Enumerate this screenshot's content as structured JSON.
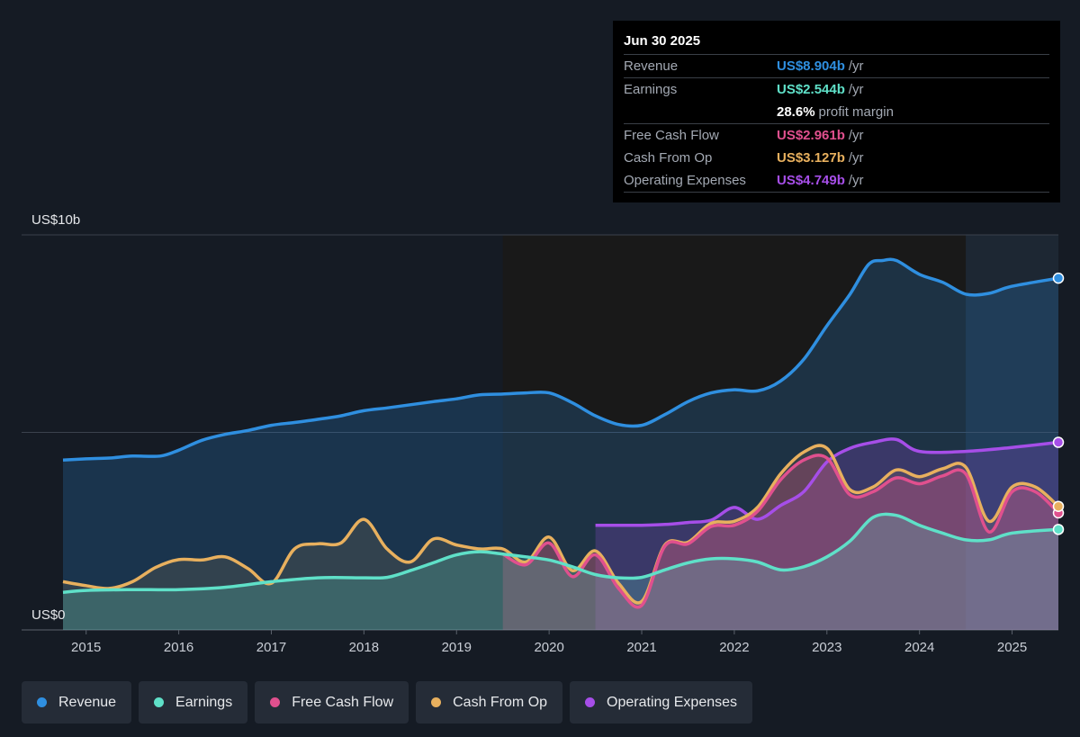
{
  "chart_data": {
    "type": "area",
    "y_top_label": "US$10b",
    "y_bottom_label": "US$0",
    "ylim": [
      0,
      10
    ],
    "xlim": [
      2014.55,
      2025.5
    ],
    "x_ticks": [
      "2015",
      "2016",
      "2017",
      "2018",
      "2019",
      "2020",
      "2021",
      "2022",
      "2023",
      "2024",
      "2025"
    ],
    "gridlines": [
      0,
      5,
      10
    ],
    "forecast_start": 2024.5,
    "series": [
      {
        "name": "Revenue",
        "color": "#2f8fe0",
        "points": [
          [
            2014.75,
            4.3
          ],
          [
            2015.0,
            4.33
          ],
          [
            2015.25,
            4.35
          ],
          [
            2015.5,
            4.4
          ],
          [
            2015.8,
            4.4
          ],
          [
            2016.0,
            4.55
          ],
          [
            2016.25,
            4.8
          ],
          [
            2016.5,
            4.95
          ],
          [
            2016.75,
            5.05
          ],
          [
            2017.0,
            5.18
          ],
          [
            2017.25,
            5.25
          ],
          [
            2017.5,
            5.33
          ],
          [
            2017.75,
            5.42
          ],
          [
            2018.0,
            5.55
          ],
          [
            2018.25,
            5.62
          ],
          [
            2018.5,
            5.7
          ],
          [
            2018.75,
            5.78
          ],
          [
            2019.0,
            5.85
          ],
          [
            2019.25,
            5.95
          ],
          [
            2019.5,
            5.97
          ],
          [
            2019.75,
            6.0
          ],
          [
            2020.0,
            6.0
          ],
          [
            2020.25,
            5.75
          ],
          [
            2020.5,
            5.42
          ],
          [
            2020.75,
            5.2
          ],
          [
            2021.0,
            5.18
          ],
          [
            2021.25,
            5.45
          ],
          [
            2021.5,
            5.78
          ],
          [
            2021.75,
            6.0
          ],
          [
            2022.0,
            6.08
          ],
          [
            2022.25,
            6.05
          ],
          [
            2022.5,
            6.3
          ],
          [
            2022.75,
            6.85
          ],
          [
            2023.0,
            7.7
          ],
          [
            2023.25,
            8.5
          ],
          [
            2023.45,
            9.25
          ],
          [
            2023.6,
            9.35
          ],
          [
            2023.75,
            9.35
          ],
          [
            2024.0,
            9.0
          ],
          [
            2024.25,
            8.8
          ],
          [
            2024.5,
            8.5
          ],
          [
            2024.75,
            8.52
          ],
          [
            2025.0,
            8.7
          ],
          [
            2025.5,
            8.904
          ]
        ]
      },
      {
        "name": "Earnings",
        "color": "#5fe0c8",
        "points": [
          [
            2014.75,
            0.95
          ],
          [
            2015.0,
            1.0
          ],
          [
            2015.5,
            1.02
          ],
          [
            2016.0,
            1.02
          ],
          [
            2016.5,
            1.08
          ],
          [
            2017.0,
            1.22
          ],
          [
            2017.5,
            1.32
          ],
          [
            2018.0,
            1.32
          ],
          [
            2018.25,
            1.33
          ],
          [
            2018.5,
            1.5
          ],
          [
            2018.75,
            1.7
          ],
          [
            2019.0,
            1.9
          ],
          [
            2019.25,
            1.98
          ],
          [
            2019.5,
            1.92
          ],
          [
            2019.75,
            1.85
          ],
          [
            2020.0,
            1.77
          ],
          [
            2020.25,
            1.6
          ],
          [
            2020.5,
            1.4
          ],
          [
            2020.75,
            1.32
          ],
          [
            2021.0,
            1.33
          ],
          [
            2021.25,
            1.52
          ],
          [
            2021.5,
            1.7
          ],
          [
            2021.75,
            1.8
          ],
          [
            2022.0,
            1.8
          ],
          [
            2022.25,
            1.72
          ],
          [
            2022.5,
            1.52
          ],
          [
            2022.75,
            1.6
          ],
          [
            2023.0,
            1.85
          ],
          [
            2023.25,
            2.25
          ],
          [
            2023.5,
            2.85
          ],
          [
            2023.75,
            2.9
          ],
          [
            2024.0,
            2.65
          ],
          [
            2024.25,
            2.45
          ],
          [
            2024.5,
            2.28
          ],
          [
            2024.75,
            2.28
          ],
          [
            2025.0,
            2.45
          ],
          [
            2025.5,
            2.544
          ]
        ]
      },
      {
        "name": "Free Cash Flow",
        "color": "#e0508e",
        "points": [
          [
            2019.5,
            1.92
          ],
          [
            2019.75,
            1.65
          ],
          [
            2020.0,
            2.2
          ],
          [
            2020.25,
            1.35
          ],
          [
            2020.5,
            1.9
          ],
          [
            2020.75,
            1.05
          ],
          [
            2021.0,
            0.62
          ],
          [
            2021.25,
            2.12
          ],
          [
            2021.5,
            2.18
          ],
          [
            2021.75,
            2.62
          ],
          [
            2022.0,
            2.65
          ],
          [
            2022.25,
            3.0
          ],
          [
            2022.5,
            3.8
          ],
          [
            2022.75,
            4.3
          ],
          [
            2023.0,
            4.35
          ],
          [
            2023.25,
            3.42
          ],
          [
            2023.5,
            3.5
          ],
          [
            2023.75,
            3.85
          ],
          [
            2024.0,
            3.7
          ],
          [
            2024.25,
            3.9
          ],
          [
            2024.5,
            3.95
          ],
          [
            2024.75,
            2.48
          ],
          [
            2025.0,
            3.5
          ],
          [
            2025.25,
            3.5
          ],
          [
            2025.5,
            2.961
          ]
        ]
      },
      {
        "name": "Cash From Op",
        "color": "#e8b05e",
        "points": [
          [
            2014.75,
            1.22
          ],
          [
            2015.0,
            1.12
          ],
          [
            2015.25,
            1.05
          ],
          [
            2015.5,
            1.22
          ],
          [
            2015.75,
            1.58
          ],
          [
            2016.0,
            1.78
          ],
          [
            2016.25,
            1.77
          ],
          [
            2016.5,
            1.85
          ],
          [
            2016.75,
            1.55
          ],
          [
            2017.0,
            1.18
          ],
          [
            2017.25,
            2.05
          ],
          [
            2017.5,
            2.18
          ],
          [
            2017.75,
            2.2
          ],
          [
            2018.0,
            2.8
          ],
          [
            2018.25,
            2.05
          ],
          [
            2018.5,
            1.72
          ],
          [
            2018.75,
            2.3
          ],
          [
            2019.0,
            2.15
          ],
          [
            2019.25,
            2.05
          ],
          [
            2019.5,
            2.05
          ],
          [
            2019.75,
            1.72
          ],
          [
            2020.0,
            2.35
          ],
          [
            2020.25,
            1.5
          ],
          [
            2020.5,
            2.0
          ],
          [
            2020.75,
            1.18
          ],
          [
            2021.0,
            0.72
          ],
          [
            2021.25,
            2.15
          ],
          [
            2021.5,
            2.22
          ],
          [
            2021.75,
            2.7
          ],
          [
            2022.0,
            2.75
          ],
          [
            2022.25,
            3.1
          ],
          [
            2022.5,
            3.95
          ],
          [
            2022.75,
            4.5
          ],
          [
            2023.0,
            4.6
          ],
          [
            2023.25,
            3.55
          ],
          [
            2023.5,
            3.62
          ],
          [
            2023.75,
            4.05
          ],
          [
            2024.0,
            3.88
          ],
          [
            2024.25,
            4.08
          ],
          [
            2024.5,
            4.12
          ],
          [
            2024.75,
            2.75
          ],
          [
            2025.0,
            3.62
          ],
          [
            2025.25,
            3.62
          ],
          [
            2025.5,
            3.127
          ]
        ]
      },
      {
        "name": "Operating Expenses",
        "color": "#a64ee8",
        "points": [
          [
            2020.5,
            2.65
          ],
          [
            2020.75,
            2.65
          ],
          [
            2021.0,
            2.65
          ],
          [
            2021.25,
            2.67
          ],
          [
            2021.5,
            2.72
          ],
          [
            2021.75,
            2.78
          ],
          [
            2022.0,
            3.1
          ],
          [
            2022.25,
            2.8
          ],
          [
            2022.5,
            3.15
          ],
          [
            2022.75,
            3.5
          ],
          [
            2023.0,
            4.25
          ],
          [
            2023.25,
            4.6
          ],
          [
            2023.5,
            4.75
          ],
          [
            2023.75,
            4.82
          ],
          [
            2024.0,
            4.52
          ],
          [
            2024.5,
            4.52
          ],
          [
            2025.0,
            4.62
          ],
          [
            2025.5,
            4.749
          ]
        ]
      }
    ]
  },
  "tooltip": {
    "date": "Jun 30 2025",
    "rows": [
      {
        "label": "Revenue",
        "value": "US$8.904b",
        "unit": "/yr",
        "color": "#2f8fe0"
      },
      {
        "label": "Earnings",
        "value": "US$2.544b",
        "unit": "/yr",
        "color": "#5fe0c8"
      },
      {
        "label": "",
        "value": "28.6%",
        "unit": "profit margin",
        "color": "#ffffff"
      },
      {
        "label": "Free Cash Flow",
        "value": "US$2.961b",
        "unit": "/yr",
        "color": "#e0508e"
      },
      {
        "label": "Cash From Op",
        "value": "US$3.127b",
        "unit": "/yr",
        "color": "#e8b05e"
      },
      {
        "label": "Operating Expenses",
        "value": "US$4.749b",
        "unit": "/yr",
        "color": "#a64ee8"
      }
    ]
  },
  "legend": [
    {
      "label": "Revenue",
      "color": "#2f8fe0"
    },
    {
      "label": "Earnings",
      "color": "#5fe0c8"
    },
    {
      "label": "Free Cash Flow",
      "color": "#e0508e"
    },
    {
      "label": "Cash From Op",
      "color": "#e8b05e"
    },
    {
      "label": "Operating Expenses",
      "color": "#a64ee8"
    }
  ]
}
